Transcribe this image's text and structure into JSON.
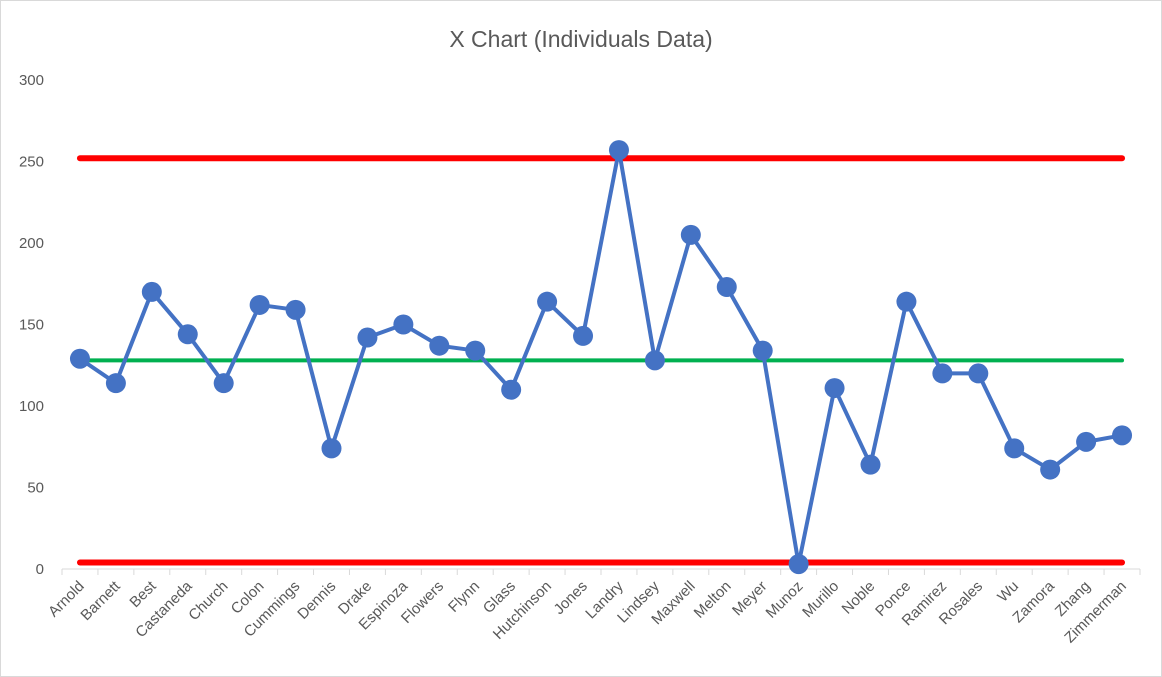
{
  "chart_data": {
    "type": "line",
    "title": "X Chart (Individuals Data)",
    "categories": [
      "Arnold",
      "Barnett",
      "Best",
      "Castaneda",
      "Church",
      "Colon",
      "Cummings",
      "Dennis",
      "Drake",
      "Espinoza",
      "Flowers",
      "Flynn",
      "Glass",
      "Hutchinson",
      "Jones",
      "Landry",
      "Lindsey",
      "Maxwell",
      "Melton",
      "Meyer",
      "Munoz",
      "Murillo",
      "Noble",
      "Ponce",
      "Ramirez",
      "Rosales",
      "Wu",
      "Zamora",
      "Zhang",
      "Zimmerman"
    ],
    "values": [
      129,
      114,
      170,
      144,
      114,
      162,
      159,
      74,
      142,
      150,
      137,
      134,
      110,
      164,
      143,
      257,
      128,
      205,
      173,
      134,
      3,
      111,
      64,
      164,
      120,
      120,
      74,
      61,
      78,
      82
    ],
    "ylim": [
      0,
      300
    ],
    "yticks": [
      0,
      50,
      100,
      150,
      200,
      250,
      300
    ],
    "center_line": 128,
    "upper_limit": 252,
    "lower_limit": 4,
    "grid": false,
    "colors": {
      "series": "#4472C4",
      "center": "#00B050",
      "limits": "#FF0000",
      "text": "#595959",
      "axis": "#d9d9d9"
    }
  }
}
